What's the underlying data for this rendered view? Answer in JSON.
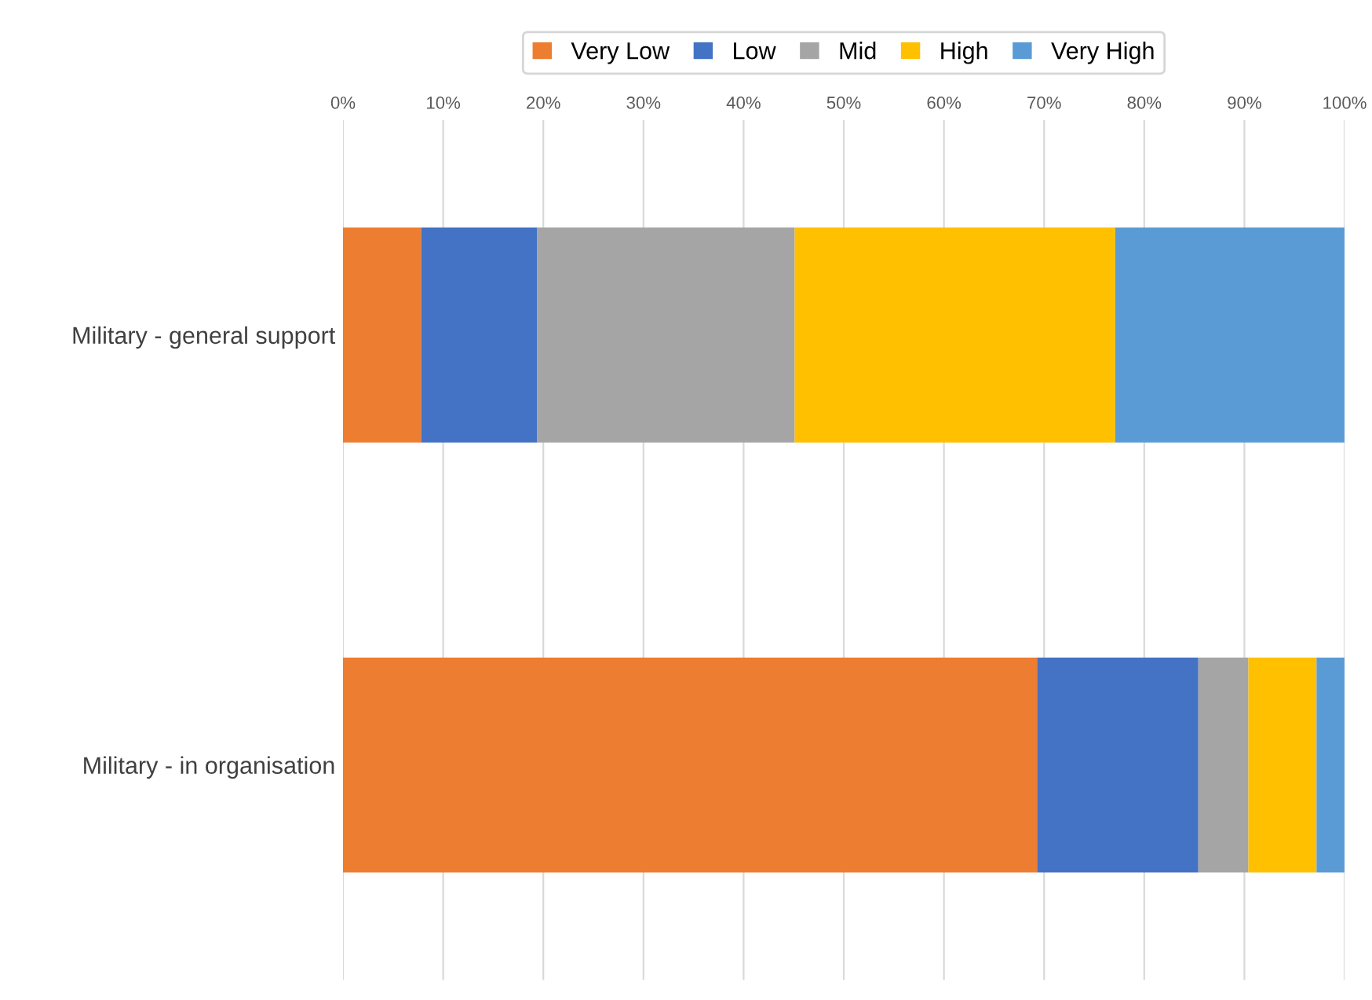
{
  "chart_data": {
    "type": "bar",
    "orientation": "horizontal",
    "stacked": true,
    "categories": [
      "Military - general support",
      "Military - in organisation"
    ],
    "series": [
      {
        "name": "Very Low",
        "color": "#ed7d31",
        "values": [
          7.8,
          69.3
        ]
      },
      {
        "name": "Low",
        "color": "#4472c4",
        "values": [
          11.6,
          16.1
        ]
      },
      {
        "name": "Mid",
        "color": "#a5a5a5",
        "values": [
          25.7,
          5.0
        ]
      },
      {
        "name": "High",
        "color": "#ffc000",
        "values": [
          32.0,
          6.8
        ]
      },
      {
        "name": "Very High",
        "color": "#5b9bd5",
        "values": [
          22.9,
          2.8
        ]
      }
    ],
    "xlim": [
      0,
      100
    ],
    "xticks": [
      {
        "value": 0,
        "label": "0%"
      },
      {
        "value": 10,
        "label": "10%"
      },
      {
        "value": 20,
        "label": "20%"
      },
      {
        "value": 30,
        "label": "30%"
      },
      {
        "value": 40,
        "label": "40%"
      },
      {
        "value": 50,
        "label": "50%"
      },
      {
        "value": 60,
        "label": "60%"
      },
      {
        "value": 70,
        "label": "70%"
      },
      {
        "value": 80,
        "label": "80%"
      },
      {
        "value": 90,
        "label": "90%"
      },
      {
        "value": 100,
        "label": "100%"
      }
    ],
    "grid": "x",
    "legend": "top"
  }
}
